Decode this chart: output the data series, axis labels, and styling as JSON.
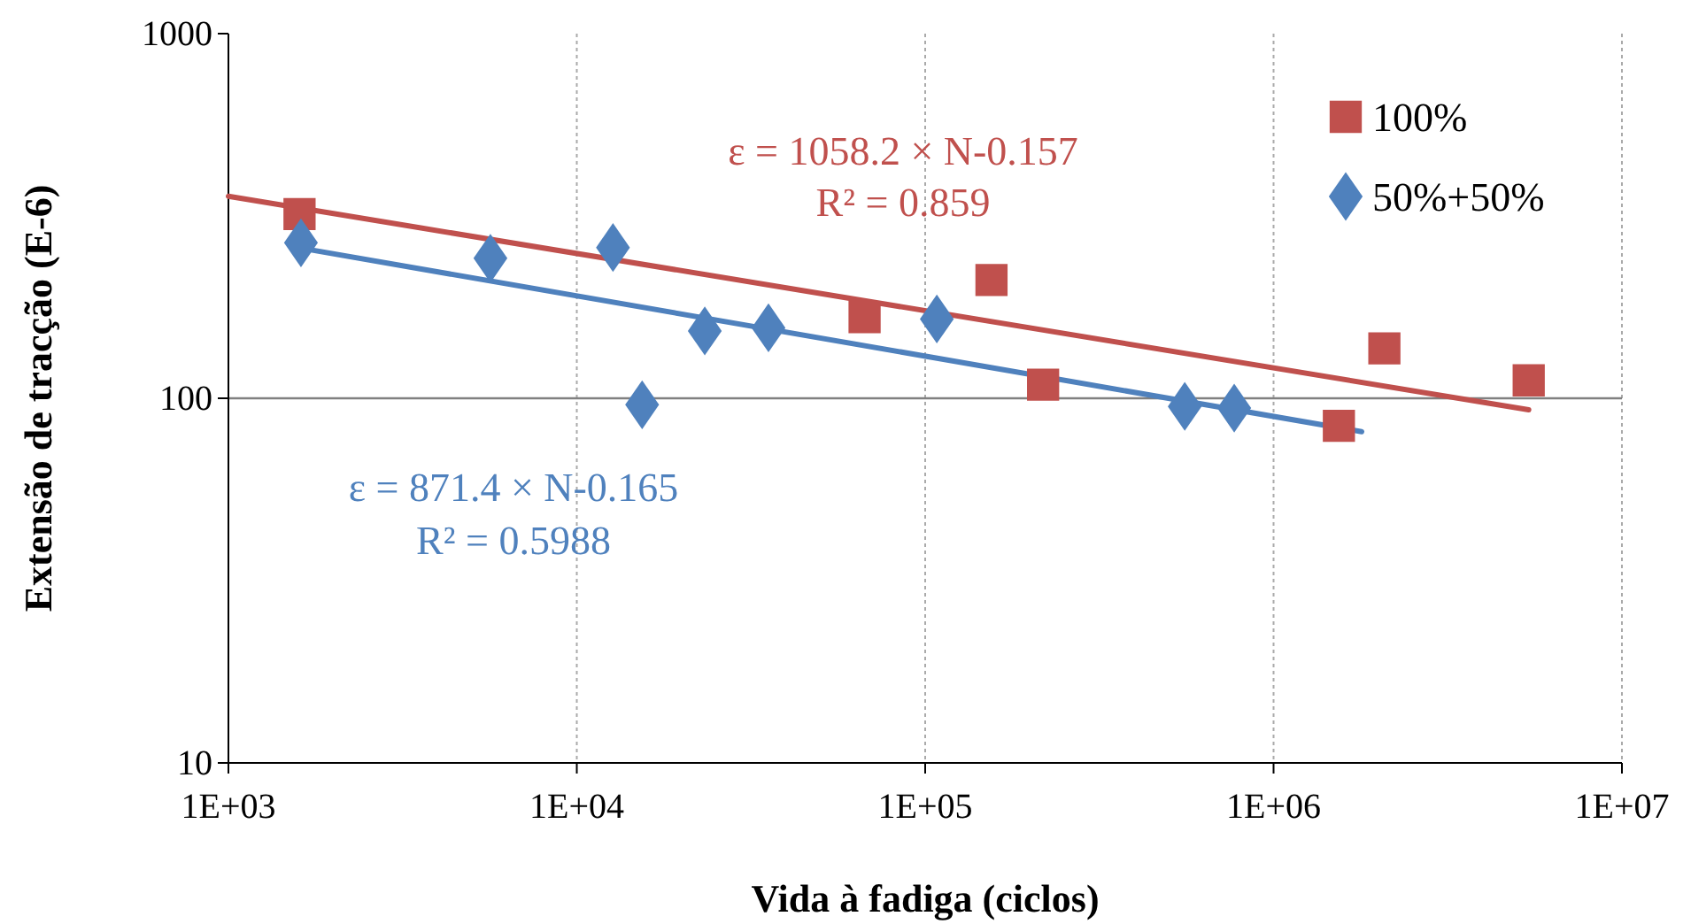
{
  "chart_data": {
    "type": "scatter",
    "xlabel": "Vida à fadiga (ciclos)",
    "ylabel": "Extensão de tracção (E-6)",
    "log": "xy",
    "grid": "x",
    "ref_lines": [
      {
        "axis": "y",
        "value": 100,
        "color": "#808080"
      }
    ],
    "legend": "top right",
    "xlim": [
      1000,
      10000000
    ],
    "xticks": [
      {
        "value": 1000,
        "label": "1E+03"
      },
      {
        "value": 10000,
        "label": "1E+04"
      },
      {
        "value": 100000,
        "label": "1E+05"
      },
      {
        "value": 1000000,
        "label": "1E+06"
      },
      {
        "value": 10000000,
        "label": "1E+07"
      }
    ],
    "ylim": [
      10,
      1000
    ],
    "yticks": [
      10,
      100,
      1000
    ],
    "series": [
      {
        "name": "100%",
        "color": "#c0504d",
        "marker": "square",
        "x": [
          1600,
          67000,
          155000,
          218000,
          1540000,
          2080000,
          5400000
        ],
        "values": [
          320,
          167,
          211,
          109,
          84,
          137,
          112
        ]
      },
      {
        "name": "50%+50%",
        "color": "#4f81bd",
        "marker": "diamond",
        "x": [
          1615,
          5650,
          12700,
          15400,
          23300,
          35500,
          108000,
          556000,
          771000
        ],
        "values": [
          267,
          242,
          259,
          96,
          153,
          156,
          165,
          95,
          94
        ]
      },
      {
        "type": "line",
        "color": "#c0504d",
        "x": [
          1000,
          5400000
        ],
        "values": [
          358,
          93
        ]
      },
      {
        "type": "line",
        "color": "#4f81bd",
        "x": [
          1615,
          1790000
        ],
        "values": [
          258,
          81
        ]
      }
    ],
    "annotations": [
      "ε = 1058.2 × N-0.157",
      "R² = 0.859",
      "ε = 871.4 × N-0.165",
      "R² = 0.5988"
    ]
  }
}
